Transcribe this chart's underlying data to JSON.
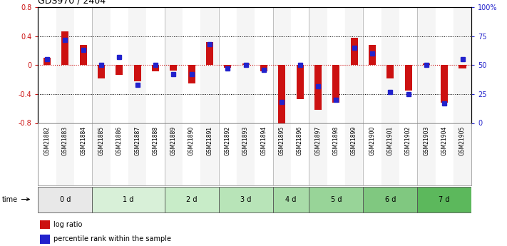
{
  "title": "GDS970 / 2404",
  "samples": [
    "GSM21882",
    "GSM21883",
    "GSM21884",
    "GSM21885",
    "GSM21886",
    "GSM21887",
    "GSM21888",
    "GSM21889",
    "GSM21890",
    "GSM21891",
    "GSM21892",
    "GSM21893",
    "GSM21894",
    "GSM21895",
    "GSM21896",
    "GSM21897",
    "GSM21898",
    "GSM21899",
    "GSM21900",
    "GSM21901",
    "GSM21902",
    "GSM21903",
    "GSM21904",
    "GSM21905"
  ],
  "log_ratio": [
    0.1,
    0.47,
    0.28,
    -0.18,
    -0.13,
    -0.22,
    -0.08,
    -0.07,
    -0.25,
    0.32,
    -0.04,
    0.02,
    -0.08,
    -0.85,
    -0.47,
    -0.62,
    -0.52,
    0.38,
    0.28,
    -0.18,
    -0.35,
    0.02,
    -0.52,
    -0.05
  ],
  "percentile_rank": [
    55,
    72,
    63,
    50,
    57,
    33,
    50,
    42,
    42,
    68,
    47,
    50,
    46,
    18,
    50,
    32,
    20,
    65,
    60,
    27,
    25,
    50,
    17,
    55
  ],
  "time_groups": {
    "0 d": [
      0,
      1,
      2
    ],
    "1 d": [
      3,
      4,
      5,
      6
    ],
    "2 d": [
      7,
      8,
      9
    ],
    "3 d": [
      10,
      11,
      12
    ],
    "4 d": [
      13,
      14
    ],
    "5 d": [
      15,
      16,
      17
    ],
    "6 d": [
      18,
      19,
      20
    ],
    "7 d": [
      21,
      22,
      23
    ]
  },
  "group_colors": [
    "#e8e8e8",
    "#d8f0d8",
    "#c8ecc8",
    "#b8e4b8",
    "#a8dca8",
    "#98d498",
    "#80c880",
    "#5cb85c"
  ],
  "tick_col_colors": [
    "#e8e8e8",
    "#f0f0f0"
  ],
  "ylim": [
    -0.8,
    0.8
  ],
  "y2lim": [
    0,
    100
  ],
  "bar_color": "#cc1111",
  "dot_color": "#2222cc",
  "bg_color": "#ffffff",
  "plot_bg": "#ffffff"
}
